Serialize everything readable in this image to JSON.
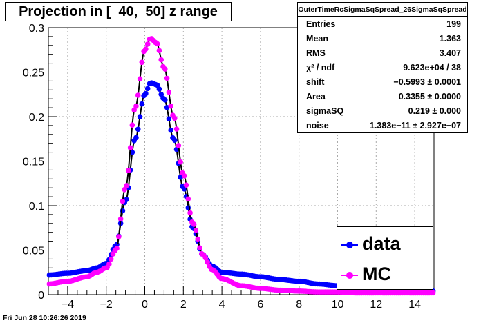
{
  "title": "Projection in [  40,  50] z range",
  "datestamp": "Fri Jun 28 10:26:26 2019",
  "stats": {
    "name": "OuterTimeRcSigmaSqSpread_26SigmaSqSpread",
    "rows": [
      {
        "label": "Entries",
        "value": "199"
      },
      {
        "label": "Mean",
        "value": "1.363"
      },
      {
        "label": "RMS",
        "value": "3.407"
      },
      {
        "label": "χ² / ndf",
        "value": "9.623e+04 / 38"
      },
      {
        "label": "shift",
        "value": "−0.5993 ± 0.0001"
      },
      {
        "label": "Area",
        "value": "0.3355 ± 0.0000"
      },
      {
        "label": "sigmaSQ",
        "value": "0.219 ± 0.000"
      },
      {
        "label": "noise",
        "value": "1.383e−11 ± 2.927e−07"
      }
    ]
  },
  "legend": [
    {
      "label": "data",
      "color": "#0000ff"
    },
    {
      "label": "MC",
      "color": "#ff00ff"
    }
  ],
  "chart_data": {
    "type": "scatter",
    "xlim": [
      -5,
      15
    ],
    "ylim": [
      0,
      0.3
    ],
    "xticks": [
      "−4",
      "−2",
      "0",
      "2",
      "4",
      "6",
      "8",
      "10",
      "12",
      "14"
    ],
    "xtick_values": [
      -4,
      -2,
      0,
      2,
      4,
      6,
      8,
      10,
      12,
      14
    ],
    "yticks": [
      "0",
      "0.05",
      "0.1",
      "0.15",
      "0.2",
      "0.25",
      "0.3"
    ],
    "ytick_values": [
      0,
      0.05,
      0.1,
      0.15,
      0.2,
      0.25,
      0.3
    ],
    "grid": true,
    "series": [
      {
        "name": "data",
        "color": "#0000ff",
        "points": [
          [
            -5,
            0.022
          ],
          [
            -4,
            0.024
          ],
          [
            -3,
            0.027
          ],
          [
            -2.5,
            0.03
          ],
          [
            -2,
            0.035
          ],
          [
            -1.5,
            0.055
          ],
          [
            -1,
            0.105
          ],
          [
            -0.5,
            0.175
          ],
          [
            0,
            0.225
          ],
          [
            0.3,
            0.238
          ],
          [
            0.6,
            0.236
          ],
          [
            1,
            0.22
          ],
          [
            1.5,
            0.175
          ],
          [
            2,
            0.12
          ],
          [
            2.5,
            0.075
          ],
          [
            3,
            0.045
          ],
          [
            3.5,
            0.032
          ],
          [
            4,
            0.025
          ],
          [
            5,
            0.023
          ],
          [
            6,
            0.02
          ],
          [
            7,
            0.017
          ],
          [
            8,
            0.015
          ],
          [
            9,
            0.012
          ],
          [
            10,
            0.01
          ],
          [
            11,
            0.008
          ],
          [
            12,
            0.006
          ],
          [
            13,
            0.005
          ],
          [
            14,
            0.005
          ],
          [
            15,
            0.004
          ]
        ]
      },
      {
        "name": "MC",
        "color": "#ff00ff",
        "points": [
          [
            -5,
            0.012
          ],
          [
            -4,
            0.015
          ],
          [
            -3,
            0.02
          ],
          [
            -2.5,
            0.025
          ],
          [
            -2,
            0.03
          ],
          [
            -1.5,
            0.05
          ],
          [
            -1,
            0.12
          ],
          [
            -0.5,
            0.21
          ],
          [
            0,
            0.275
          ],
          [
            0.3,
            0.288
          ],
          [
            0.6,
            0.283
          ],
          [
            1,
            0.255
          ],
          [
            1.5,
            0.2
          ],
          [
            2,
            0.135
          ],
          [
            2.5,
            0.08
          ],
          [
            3,
            0.045
          ],
          [
            3.5,
            0.028
          ],
          [
            4,
            0.018
          ],
          [
            5,
            0.01
          ],
          [
            6,
            0.007
          ],
          [
            7,
            0.005
          ],
          [
            8,
            0.004
          ],
          [
            9,
            0.003
          ],
          [
            10,
            0.003
          ],
          [
            11,
            0.002
          ],
          [
            12,
            0.002
          ],
          [
            13,
            0.002
          ],
          [
            14,
            0.002
          ],
          [
            15,
            0.002
          ]
        ]
      }
    ]
  }
}
